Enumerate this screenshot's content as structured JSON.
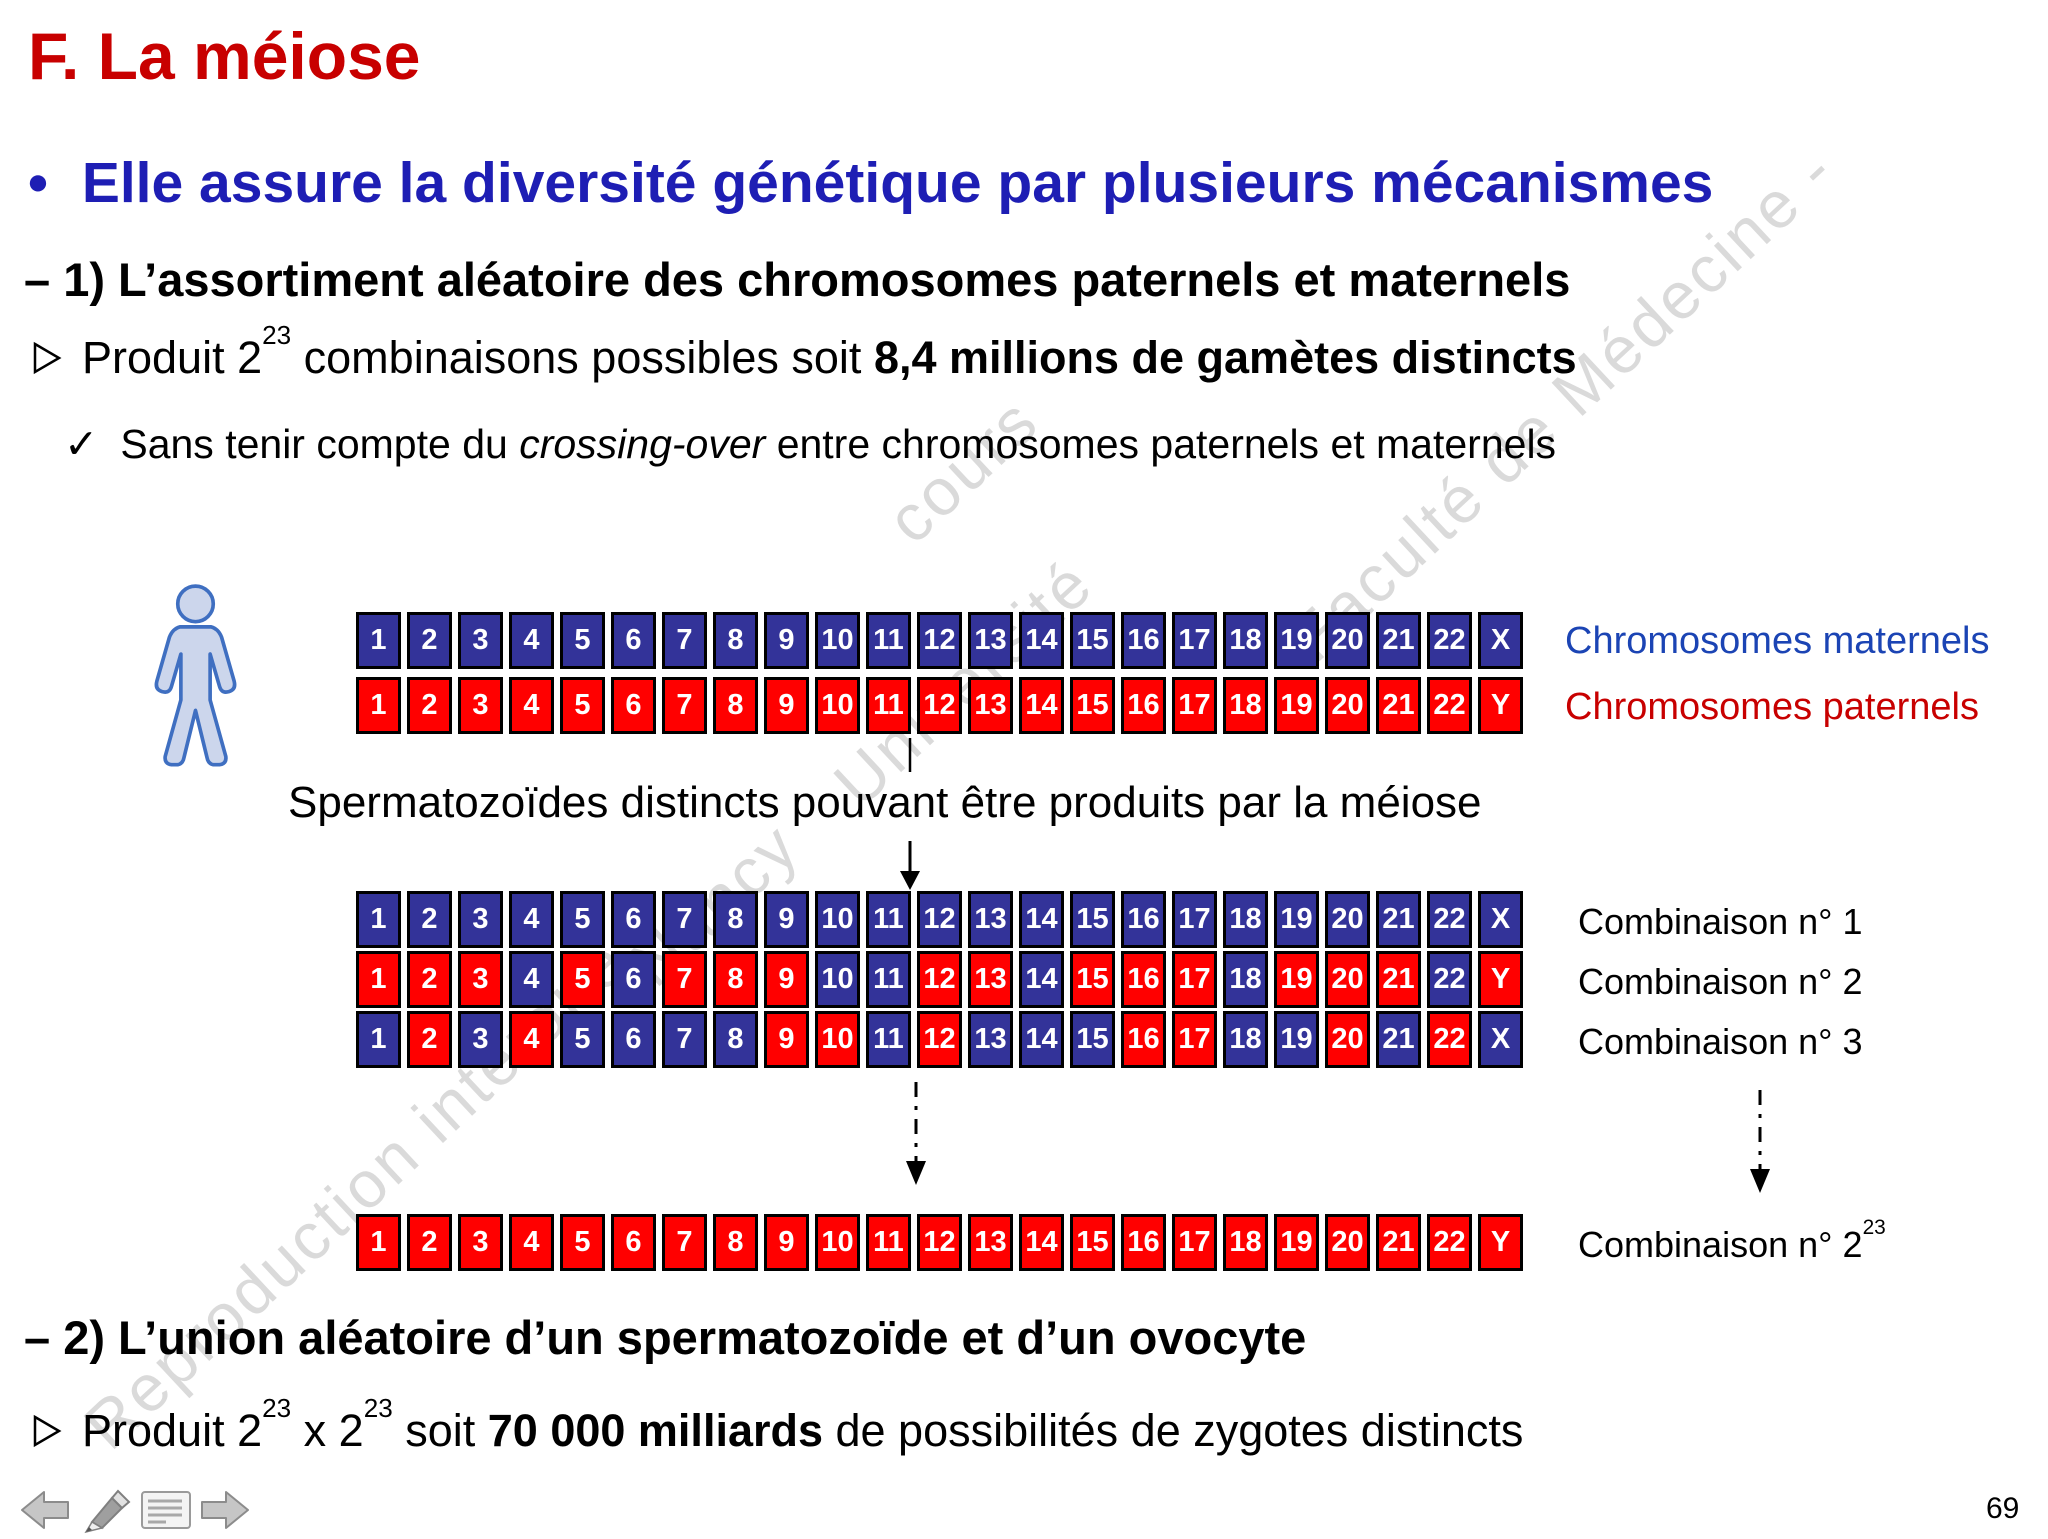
{
  "slide": {
    "title": "F. La méiose",
    "page_number": "69"
  },
  "colors": {
    "title_red": "#c80000",
    "heading_blue": "#1e1eb4",
    "maternal_cell_blue": "#333399",
    "paternal_cell_red": "#ff0000",
    "maternal_label_blue": "#1b44b4",
    "paternal_label_red": "#c80000",
    "watermark_gray": "#bdbdbd",
    "toolbar_gray": "#c6c6c6"
  },
  "headings": {
    "main_bullet_char": "•",
    "main_bullet_text": "Elle assure la diversité génétique par plusieurs mécanismes",
    "point1": "– 1) L’assortiment aléatoire des chromosomes paternels et maternels",
    "point2": "– 2) L’union aléatoire d’un spermatozoïde et d’un ovocyte"
  },
  "bullets": {
    "produit1": {
      "pre": "Produit 2",
      "sup1": "23",
      "mid": " combinaisons possibles soit ",
      "bold": "8,4 millions de gamètes distincts"
    },
    "check1": {
      "bullet": "✓",
      "pre": "Sans tenir compte du ",
      "italic": "crossing-over",
      "post": " entre chromosomes paternels et maternels"
    },
    "produit2": {
      "pre": "Produit 2",
      "sup1": "23",
      "mid": " x 2",
      "sup2": "23",
      "mid2": " soit ",
      "bold": "70 000 milliards",
      "post": " de possibilités de zygotes distincts"
    }
  },
  "diagram": {
    "maternal_label": "Chromosomes maternels",
    "paternal_label": "Chromosomes paternels",
    "middle_caption": "Spermatozoïdes distincts pouvant être produits par la méiose",
    "combination_labels": {
      "c1": "Combinaison n° 1",
      "c2": "Combinaison n° 2",
      "c3": "Combinaison n° 3",
      "last_base": "Combinaison n° 2",
      "last_sup": "23"
    },
    "rows": {
      "maternal": {
        "labels": [
          "1",
          "2",
          "3",
          "4",
          "5",
          "6",
          "7",
          "8",
          "9",
          "10",
          "11",
          "12",
          "13",
          "14",
          "15",
          "16",
          "17",
          "18",
          "19",
          "20",
          "21",
          "22",
          "X"
        ],
        "colors": "bbbbbbbbbbbbbbbbbbbbbbb"
      },
      "paternal": {
        "labels": [
          "1",
          "2",
          "3",
          "4",
          "5",
          "6",
          "7",
          "8",
          "9",
          "10",
          "11",
          "12",
          "13",
          "14",
          "15",
          "16",
          "17",
          "18",
          "19",
          "20",
          "21",
          "22",
          "Y"
        ],
        "colors": "rrrrrrrrrrrrrrrrrrrrrrr"
      },
      "comb1": {
        "labels": [
          "1",
          "2",
          "3",
          "4",
          "5",
          "6",
          "7",
          "8",
          "9",
          "10",
          "11",
          "12",
          "13",
          "14",
          "15",
          "16",
          "17",
          "18",
          "19",
          "20",
          "21",
          "22",
          "X"
        ],
        "colors": "bbbbbbbbbbbbbbbbbbbbbbb"
      },
      "comb2": {
        "labels": [
          "1",
          "2",
          "3",
          "4",
          "5",
          "6",
          "7",
          "8",
          "9",
          "10",
          "11",
          "12",
          "13",
          "14",
          "15",
          "16",
          "17",
          "18",
          "19",
          "20",
          "21",
          "22",
          "Y"
        ],
        "colors": "rrrbrbrrrbbrrbrrrbrrrbr"
      },
      "comb3": {
        "labels": [
          "1",
          "2",
          "3",
          "4",
          "5",
          "6",
          "7",
          "8",
          "9",
          "10",
          "11",
          "12",
          "13",
          "14",
          "15",
          "16",
          "17",
          "18",
          "19",
          "20",
          "21",
          "22",
          "X"
        ],
        "colors": "brbrbbbbrrbrbbbrrbbrbrb"
      },
      "comb_last": {
        "labels": [
          "1",
          "2",
          "3",
          "4",
          "5",
          "6",
          "7",
          "8",
          "9",
          "10",
          "11",
          "12",
          "13",
          "14",
          "15",
          "16",
          "17",
          "18",
          "19",
          "20",
          "21",
          "22",
          "Y"
        ],
        "colors": "rrrrrrrrrrrrrrrrrrrrrrr"
      }
    }
  },
  "watermark": {
    "segments": [
      "Reproduction interdite",
      "Nancy",
      "Université",
      "cours",
      "Faculté de Médecine -"
    ]
  },
  "icons": {
    "produit_bullet": "right-arrowhead",
    "person": "male-figure",
    "toolbar": [
      "back-arrow",
      "pen",
      "notes",
      "forward-arrow"
    ]
  }
}
